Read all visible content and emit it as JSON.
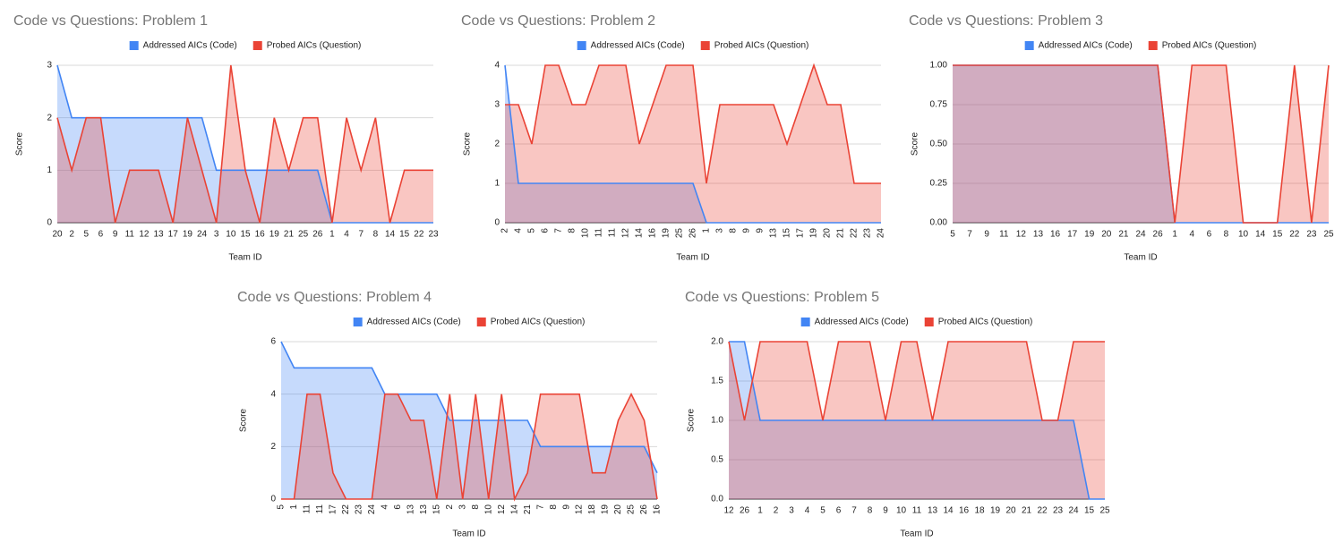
{
  "chart_data": [
    {
      "type": "area",
      "title": "Code vs Questions: Problem 1",
      "x_label": "Team ID",
      "y_label": "Score",
      "categories": [
        "20",
        "2",
        "5",
        "6",
        "9",
        "11",
        "12",
        "13",
        "17",
        "19",
        "24",
        "3",
        "10",
        "15",
        "16",
        "19",
        "21",
        "25",
        "26",
        "1",
        "4",
        "7",
        "8",
        "14",
        "15",
        "22",
        "23"
      ],
      "series": [
        {
          "name": "Addressed AICs (Code)",
          "color": "#4285f4",
          "values": [
            3,
            2,
            2,
            2,
            2,
            2,
            2,
            2,
            2,
            2,
            2,
            1,
            1,
            1,
            1,
            1,
            1,
            1,
            1,
            0,
            0,
            0,
            0,
            0,
            0,
            0,
            0
          ]
        },
        {
          "name": "Probed AICs (Question)",
          "color": "#ea4335",
          "values": [
            2,
            1,
            2,
            2,
            0,
            1,
            1,
            1,
            0,
            2,
            1,
            0,
            3,
            1,
            0,
            2,
            1,
            2,
            2,
            0,
            2,
            1,
            2,
            0,
            1,
            1,
            1
          ]
        }
      ],
      "ylim": [
        0,
        3
      ],
      "yticks": [
        0,
        1,
        2,
        3
      ],
      "grid": true
    },
    {
      "type": "area",
      "title": "Code vs Questions: Problem 2",
      "x_label": "Team ID",
      "y_label": "Score",
      "categories": [
        "2",
        "4",
        "5",
        "6",
        "7",
        "8",
        "10",
        "11",
        "11",
        "12",
        "14",
        "16",
        "19",
        "25",
        "26",
        "1",
        "3",
        "8",
        "9",
        "9",
        "13",
        "15",
        "17",
        "19",
        "20",
        "21",
        "22",
        "23",
        "24"
      ],
      "series": [
        {
          "name": "Addressed AICs (Code)",
          "color": "#4285f4",
          "values": [
            4,
            1,
            1,
            1,
            1,
            1,
            1,
            1,
            1,
            1,
            1,
            1,
            1,
            1,
            1,
            0,
            0,
            0,
            0,
            0,
            0,
            0,
            0,
            0,
            0,
            0,
            0,
            0,
            0
          ]
        },
        {
          "name": "Probed AICs (Question)",
          "color": "#ea4335",
          "values": [
            3,
            3,
            2,
            4,
            4,
            3,
            3,
            4,
            4,
            4,
            2,
            3,
            4,
            4,
            4,
            1,
            3,
            3,
            3,
            3,
            3,
            2,
            3,
            4,
            3,
            3,
            1,
            1,
            1
          ]
        }
      ],
      "ylim": [
        0,
        4
      ],
      "yticks": [
        0,
        1,
        2,
        3,
        4
      ],
      "grid": true
    },
    {
      "type": "area",
      "title": "Code vs Questions: Problem 3",
      "x_label": "Team ID",
      "y_label": "Score",
      "categories": [
        "5",
        "7",
        "9",
        "11",
        "12",
        "13",
        "16",
        "17",
        "19",
        "20",
        "21",
        "24",
        "26",
        "1",
        "4",
        "6",
        "8",
        "10",
        "14",
        "15",
        "22",
        "23",
        "25"
      ],
      "series": [
        {
          "name": "Addressed AICs (Code)",
          "color": "#4285f4",
          "values": [
            1,
            1,
            1,
            1,
            1,
            1,
            1,
            1,
            1,
            1,
            1,
            1,
            1,
            0,
            0,
            0,
            0,
            0,
            0,
            0,
            0,
            0,
            0
          ]
        },
        {
          "name": "Probed AICs (Question)",
          "color": "#ea4335",
          "values": [
            1,
            1,
            1,
            1,
            1,
            1,
            1,
            1,
            1,
            1,
            1,
            1,
            1,
            0,
            1,
            1,
            1,
            0,
            0,
            0,
            1,
            0,
            1
          ]
        }
      ],
      "ylim": [
        0,
        1
      ],
      "yticks": [
        {
          "value": 0,
          "label": "0.00"
        },
        {
          "value": 0.25,
          "label": "0.25"
        },
        {
          "value": 0.5,
          "label": "0.50"
        },
        {
          "value": 0.75,
          "label": "0.75"
        },
        {
          "value": 1,
          "label": "1.00"
        }
      ],
      "grid": true
    },
    {
      "type": "area",
      "title": "Code vs Questions: Problem 4",
      "x_label": "Team ID",
      "y_label": "Score",
      "categories": [
        "5",
        "1",
        "11",
        "11",
        "17",
        "22",
        "23",
        "24",
        "4",
        "6",
        "13",
        "13",
        "15",
        "2",
        "3",
        "8",
        "10",
        "12",
        "14",
        "21",
        "7",
        "8",
        "9",
        "12",
        "18",
        "19",
        "20",
        "25",
        "26",
        "16"
      ],
      "series": [
        {
          "name": "Addressed AICs (Code)",
          "color": "#4285f4",
          "values": [
            6,
            5,
            5,
            5,
            5,
            5,
            5,
            5,
            4,
            4,
            4,
            4,
            4,
            3,
            3,
            3,
            3,
            3,
            3,
            3,
            2,
            2,
            2,
            2,
            2,
            2,
            2,
            2,
            2,
            1
          ]
        },
        {
          "name": "Probed AICs (Question)",
          "color": "#ea4335",
          "values": [
            0,
            0,
            4,
            4,
            1,
            0,
            0,
            0,
            4,
            4,
            3,
            3,
            0,
            4,
            0,
            4,
            0,
            4,
            0,
            1,
            4,
            4,
            4,
            4,
            1,
            1,
            3,
            4,
            3,
            0
          ]
        }
      ],
      "ylim": [
        0,
        6
      ],
      "yticks": [
        0,
        2,
        4,
        6
      ],
      "grid": true
    },
    {
      "type": "area",
      "title": "Code vs Questions: Problem 5",
      "x_label": "Team ID",
      "y_label": "Score",
      "categories": [
        "12",
        "26",
        "1",
        "2",
        "3",
        "4",
        "5",
        "6",
        "7",
        "8",
        "9",
        "10",
        "11",
        "13",
        "14",
        "16",
        "18",
        "19",
        "20",
        "21",
        "22",
        "23",
        "24",
        "15",
        "25"
      ],
      "series": [
        {
          "name": "Addressed AICs (Code)",
          "color": "#4285f4",
          "values": [
            2,
            2,
            1,
            1,
            1,
            1,
            1,
            1,
            1,
            1,
            1,
            1,
            1,
            1,
            1,
            1,
            1,
            1,
            1,
            1,
            1,
            1,
            1,
            0,
            0
          ]
        },
        {
          "name": "Probed AICs (Question)",
          "color": "#ea4335",
          "values": [
            2,
            1,
            2,
            2,
            2,
            2,
            1,
            2,
            2,
            2,
            1,
            2,
            2,
            1,
            2,
            2,
            2,
            2,
            2,
            2,
            1,
            1,
            2,
            2,
            2
          ]
        }
      ],
      "ylim": [
        0,
        2
      ],
      "yticks": [
        {
          "value": 0,
          "label": "0.0"
        },
        0.5,
        {
          "value": 1,
          "label": "1.0"
        },
        1.5,
        {
          "value": 2,
          "label": "2.0"
        }
      ],
      "grid": true
    }
  ]
}
